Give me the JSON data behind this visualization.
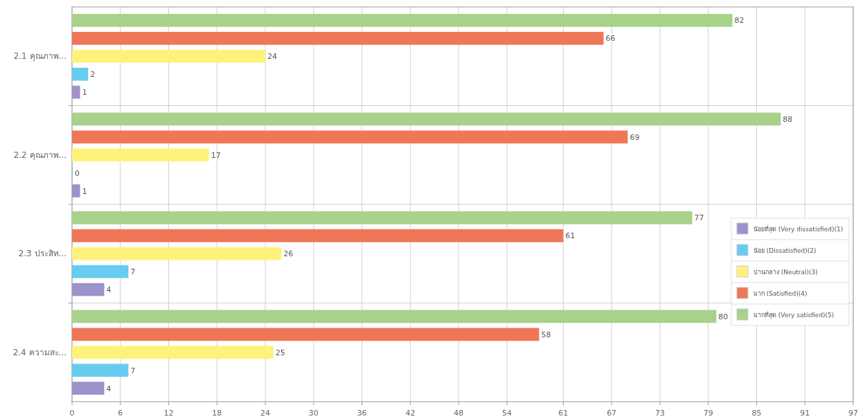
{
  "chart_data": {
    "type": "bar",
    "orientation": "horizontal",
    "categories": [
      "2.1 คุณภาพ...",
      "2.2 คุณภาพ...",
      "2.3 ประสิท...",
      "2.4 ความสะ..."
    ],
    "series": [
      {
        "name": "น้อยที่สุด (Very dissatisfied)(1)",
        "color": "#9b93c9",
        "values": [
          1,
          1,
          4,
          4
        ]
      },
      {
        "name": "น้อย (Dissatisfied)(2)",
        "color": "#66ccf0",
        "values": [
          2,
          0,
          7,
          7
        ]
      },
      {
        "name": "ปานกลาง (Neutral)(3)",
        "color": "#fff27a",
        "values": [
          24,
          17,
          26,
          25
        ]
      },
      {
        "name": "มาก (Satisfied)(4)",
        "color": "#ef7758",
        "values": [
          66,
          69,
          61,
          58
        ]
      },
      {
        "name": "มากที่สุด (Very satisfied)(5)",
        "color": "#a8d18a",
        "values": [
          82,
          88,
          77,
          80
        ]
      }
    ],
    "xlim": [
      0,
      97
    ],
    "xticks": [
      0,
      6,
      12,
      18,
      24,
      30,
      36,
      42,
      48,
      54,
      61,
      67,
      73,
      79,
      85,
      91,
      97
    ],
    "data_labels": true,
    "grid": true,
    "legend": "right"
  }
}
